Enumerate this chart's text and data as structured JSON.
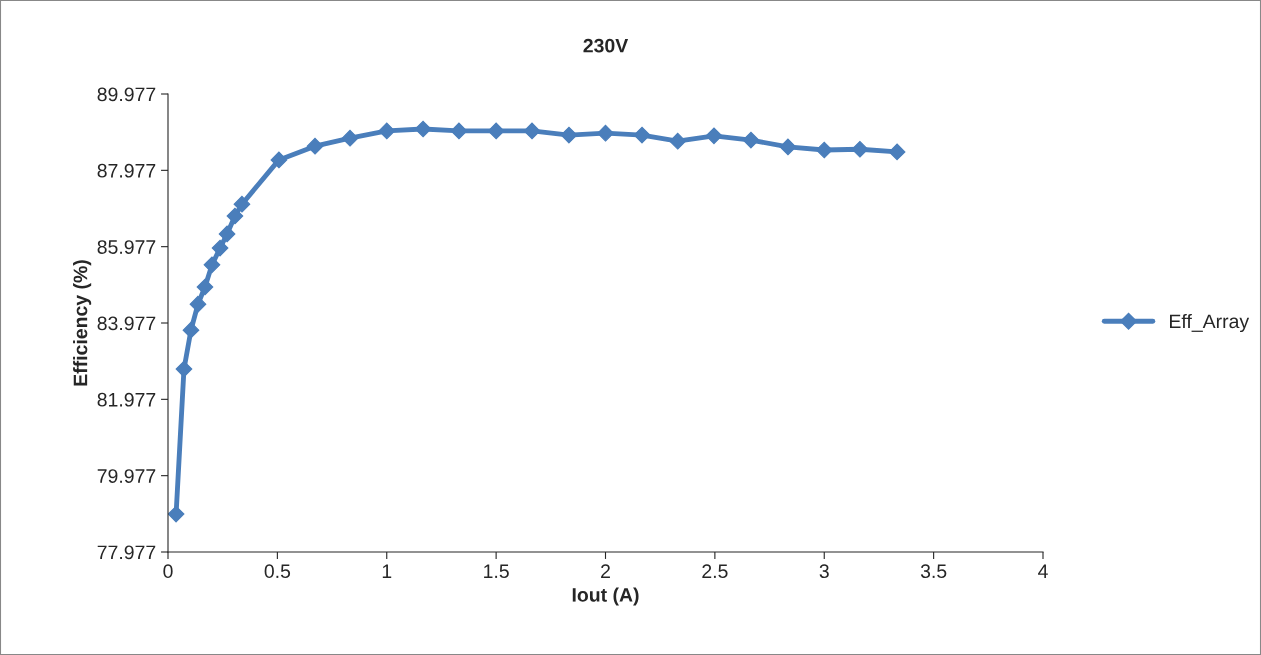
{
  "chart_data": {
    "type": "line",
    "title": "230V",
    "xlabel": "Iout (A)",
    "ylabel": "Efficiency (%)",
    "x": [
      0.037,
      0.073,
      0.105,
      0.137,
      0.169,
      0.201,
      0.238,
      0.27,
      0.306,
      0.338,
      0.507,
      0.672,
      0.832,
      1.0,
      1.166,
      1.33,
      1.5,
      1.664,
      1.833,
      2.0,
      2.167,
      2.33,
      2.496,
      2.665,
      2.834,
      3.0,
      3.163,
      3.333
    ],
    "series": [
      {
        "name": "Eff_Array",
        "color": "#4a7ebb",
        "values": [
          78.97,
          82.77,
          83.79,
          84.47,
          84.92,
          85.5,
          85.94,
          86.31,
          86.78,
          87.09,
          88.25,
          88.61,
          88.82,
          89.01,
          89.06,
          89.01,
          89.01,
          89.01,
          88.9,
          88.95,
          88.9,
          88.74,
          88.88,
          88.77,
          88.59,
          88.51,
          88.53,
          88.46
        ]
      }
    ],
    "xlim": [
      0,
      4
    ],
    "xticks": [
      0,
      0.5,
      1,
      1.5,
      2,
      2.5,
      3,
      3.5,
      4
    ],
    "ylim": [
      77.977,
      89.977
    ],
    "yticks": [
      77.977,
      79.977,
      81.977,
      83.977,
      85.977,
      87.977,
      89.977
    ],
    "marker": "diamond",
    "line_style": "solid",
    "grid": false,
    "legend": "right"
  }
}
